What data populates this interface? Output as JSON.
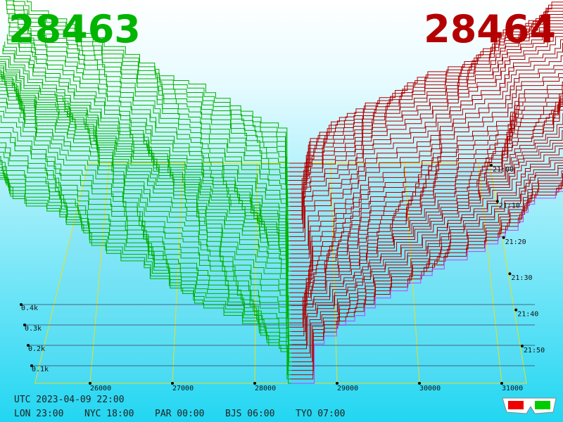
{
  "header": {
    "bid": "28463",
    "ask": "28464"
  },
  "price_axis": {
    "ticks": [
      26000,
      27000,
      28000,
      29000,
      30000,
      31000
    ]
  },
  "depth_axis": {
    "labels": [
      "0.1k",
      "0.2k",
      "0.3k",
      "0.4k"
    ]
  },
  "time_axis": {
    "labels": [
      "21:00",
      "21:10",
      "21:20",
      "21:30",
      "21:40",
      "21:50"
    ]
  },
  "footer": {
    "utc": "UTC 2023-04-09 22:00",
    "clocks": [
      "LON 23:00",
      "NYC 18:00",
      "PAR 00:00",
      "BJS 06:00",
      "TYO 07:00"
    ]
  }
}
